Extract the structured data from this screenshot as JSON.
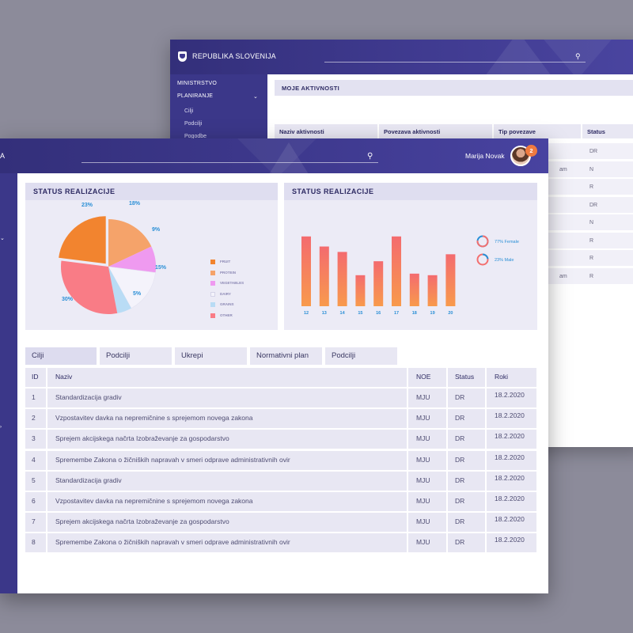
{
  "back_window": {
    "brand": "REPUBLIKA SLOVENIJA",
    "sidebar": {
      "section1": "MINISTRSTVO",
      "section2": "PLANIRANJE",
      "sub_items": [
        "Cilji",
        "Podcilji",
        "Pogodbe"
      ]
    },
    "panel_title": "MOJE AKTIVNOSTI",
    "table_headers": [
      "Naziv aktivnosti",
      "Povezava aktivnosti",
      "Tip povezave",
      "Status"
    ],
    "rows": [
      {
        "col3": "",
        "status": "DR"
      },
      {
        "col3": "am",
        "status": "N"
      },
      {
        "col3": "",
        "status": "R"
      },
      {
        "col3": "",
        "status": "DR"
      },
      {
        "col3": "",
        "status": "N"
      },
      {
        "col3": "",
        "status": "R"
      },
      {
        "col3": "",
        "status": "R"
      },
      {
        "col3": "am",
        "status": "R"
      }
    ]
  },
  "front_window": {
    "brand_fragment": "A",
    "user_name": "Marija Novak",
    "notification_count": "2",
    "icons": {
      "search": "search-icon",
      "chevron": "chevron-down-icon"
    },
    "pie_panel_title": "STATUS REALIZACIJE",
    "bar_panel_title": "STATUS REALIZACIJE",
    "tabs": [
      "Cilji",
      "Podcilji",
      "Ukrepi",
      "Normativni plan",
      "Podcilji"
    ],
    "table": {
      "headers": [
        "ID",
        "Naziv",
        "NOE",
        "Status",
        "Roki"
      ],
      "rows": [
        {
          "id": "1",
          "naziv": "Standardizacija gradiv",
          "noe": "MJU",
          "status": "DR",
          "roki": "18.2.2020"
        },
        {
          "id": "2",
          "naziv": "Vzpostavitev davka na nepremičnine s sprejemom novega zakona",
          "noe": "MJU",
          "status": "DR",
          "roki": "18.2.2020"
        },
        {
          "id": "3",
          "naziv": "Sprejem akcijskega načrta Izobraževanje za gospodarstvo",
          "noe": "MJU",
          "status": "DR",
          "roki": "18.2.2020"
        },
        {
          "id": "4",
          "naziv": "Spremembe Zakona o žičniških napravah v smeri odprave administrativnih ovir",
          "noe": "MJU",
          "status": "DR",
          "roki": "18.2.2020"
        },
        {
          "id": "5",
          "naziv": "Standardizacija gradiv",
          "noe": "MJU",
          "status": "DR",
          "roki": "18.2.2020"
        },
        {
          "id": "6",
          "naziv": "Vzpostavitev davka na nepremičnine s sprejemom novega zakona",
          "noe": "MJU",
          "status": "DR",
          "roki": "18.2.2020"
        },
        {
          "id": "7",
          "naziv": "Sprejem akcijskega načrta Izobraževanje za gospodarstvo",
          "noe": "MJU",
          "status": "DR",
          "roki": "18.2.2020"
        },
        {
          "id": "8",
          "naziv": "Spremembe Zakona o žičniških napravah v smeri odprave administrativnih ovir",
          "noe": "MJU",
          "status": "DR",
          "roki": "18.2.2020"
        }
      ]
    }
  },
  "chart_data": [
    {
      "type": "pie",
      "title": "STATUS REALIZACIJE",
      "categories": [
        "FRUIT",
        "PROTEIN",
        "VEGETABLES",
        "DAIRY",
        "GRAINS",
        "OTHER"
      ],
      "values": [
        23,
        18,
        9,
        15,
        5,
        30
      ],
      "labels": [
        "23%",
        "18%",
        "9%",
        "15%",
        "5%",
        "30%"
      ],
      "colors": [
        "#f2842f",
        "#f5a36a",
        "#ef9af0",
        "#f4f3fb",
        "#b9dcf5",
        "#f97c86"
      ]
    },
    {
      "type": "bar",
      "title": "STATUS REALIZACIJE",
      "categories": [
        "12",
        "13",
        "14",
        "15",
        "16",
        "17",
        "18",
        "19",
        "20"
      ],
      "values": [
        90,
        77,
        70,
        40,
        58,
        90,
        42,
        40,
        67
      ],
      "ylim": [
        0,
        100
      ],
      "legend": [
        {
          "label": "77% Female",
          "value": 77,
          "color": "#f36f6f"
        },
        {
          "label": "23% Male",
          "value": 23,
          "color": "#2a8fd6"
        }
      ]
    }
  ]
}
